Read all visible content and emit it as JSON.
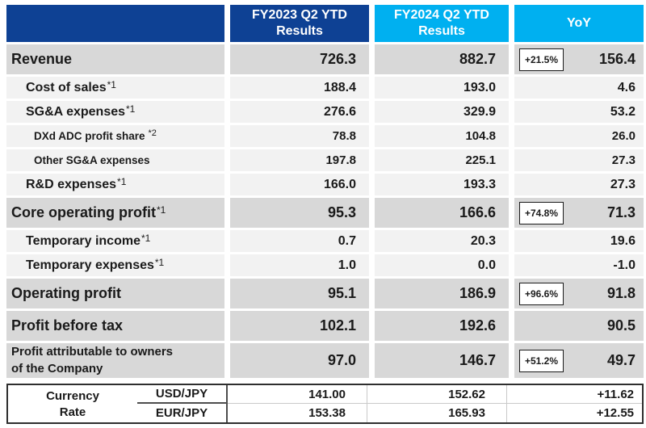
{
  "colors": {
    "header_navy": "#0e4194",
    "header_cyan": "#00b0f0",
    "major_row_bg": "#d8d8d8",
    "sub_row_bg": "#f2f2f2",
    "text": "#1a1a1a",
    "badge_border": "#1a1a1a"
  },
  "header": {
    "fy2023_line1": "FY2023 Q2 YTD",
    "fy2023_line2": "Results",
    "fy2024_line1": "FY2024 Q2 YTD",
    "fy2024_line2": "Results",
    "yoy": "YoY"
  },
  "rows": [
    {
      "label": "Revenue",
      "fy2023": "726.3",
      "fy2024": "882.7",
      "badge": "+21.5%",
      "yoy": "156.4"
    },
    {
      "label": "Cost of sales",
      "note": "*1",
      "fy2023": "188.4",
      "fy2024": "193.0",
      "yoy": "4.6"
    },
    {
      "label": "SG&A expenses",
      "note": "*1",
      "fy2023": "276.6",
      "fy2024": "329.9",
      "yoy": "53.2"
    },
    {
      "label": "DXd ADC profit share",
      "note": "*2",
      "fy2023": "78.8",
      "fy2024": "104.8",
      "yoy": "26.0"
    },
    {
      "label": "Other SG&A expenses",
      "fy2023": "197.8",
      "fy2024": "225.1",
      "yoy": "27.3"
    },
    {
      "label": "R&D expenses",
      "note": "*1",
      "fy2023": "166.0",
      "fy2024": "193.3",
      "yoy": "27.3"
    },
    {
      "label": "Core operating profit",
      "note": "*1",
      "fy2023": "95.3",
      "fy2024": "166.6",
      "badge": "+74.8%",
      "yoy": "71.3"
    },
    {
      "label": "Temporary income",
      "note": "*1",
      "fy2023": "0.7",
      "fy2024": "20.3",
      "yoy": "19.6"
    },
    {
      "label": "Temporary expenses",
      "note": "*1",
      "fy2023": "1.0",
      "fy2024": "0.0",
      "yoy": "-1.0"
    },
    {
      "label": "Operating profit",
      "fy2023": "95.1",
      "fy2024": "186.9",
      "badge": "+96.6%",
      "yoy": "91.8"
    },
    {
      "label": "Profit before tax",
      "fy2023": "102.1",
      "fy2024": "192.6",
      "yoy": "90.5"
    },
    {
      "label": "Profit attributable to owners",
      "label2": "of the Company",
      "fy2023": "97.0",
      "fy2024": "146.7",
      "badge": "+51.2%",
      "yoy": "49.7"
    }
  ],
  "currency": {
    "label_line1": "Currency",
    "label_line2": "Rate",
    "rows": [
      {
        "pair": "USD/JPY",
        "fy2023": "141.00",
        "fy2024": "152.62",
        "yoy": "+11.62"
      },
      {
        "pair": "EUR/JPY",
        "fy2023": "153.38",
        "fy2024": "165.93",
        "yoy": "+12.55"
      }
    ]
  }
}
